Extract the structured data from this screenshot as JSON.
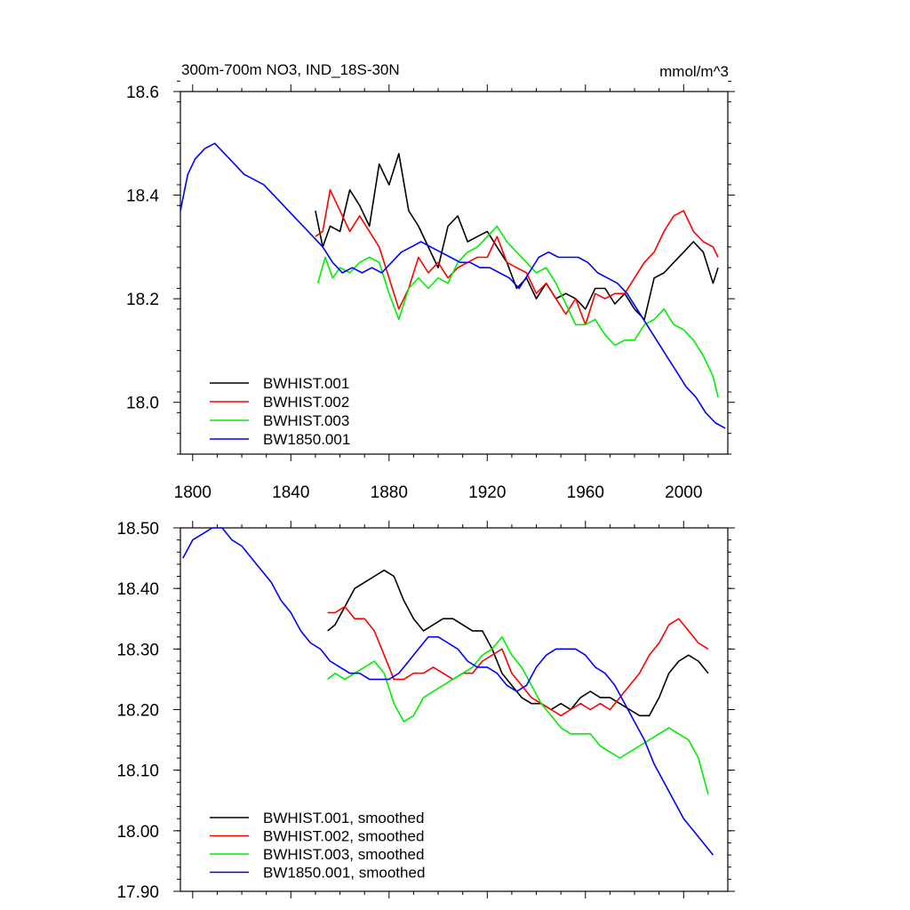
{
  "figure": {
    "title_left": "300m-700m NO3, IND_18S-30N",
    "title_right": "mmol/m^3"
  },
  "chart_data": [
    {
      "type": "line",
      "title": "300m-700m NO3, IND_18S-30N",
      "units": "mmol/m^3",
      "xlabel": "",
      "ylabel": "",
      "xlim": [
        1795,
        2018
      ],
      "ylim": [
        17.9,
        18.6
      ],
      "xticks": [
        1800,
        1840,
        1880,
        1920,
        1960,
        2000
      ],
      "yticks": [
        18.0,
        18.2,
        18.4,
        18.6
      ],
      "ytick_labels": [
        "18.0",
        "18.2",
        "18.4",
        "18.6"
      ],
      "grid": false,
      "legend_position": "bottom-left",
      "series": [
        {
          "name": "BWHIST.001",
          "color": "#000000",
          "x": [
            1850,
            1853,
            1856,
            1860,
            1864,
            1868,
            1872,
            1876,
            1880,
            1884,
            1888,
            1892,
            1896,
            1900,
            1904,
            1908,
            1912,
            1916,
            1920,
            1924,
            1928,
            1932,
            1936,
            1940,
            1944,
            1948,
            1952,
            1956,
            1960,
            1964,
            1968,
            1972,
            1976,
            1980,
            1984,
            1988,
            1992,
            1996,
            2000,
            2004,
            2008,
            2012,
            2014
          ],
          "y": [
            18.37,
            18.3,
            18.34,
            18.33,
            18.41,
            18.38,
            18.34,
            18.46,
            18.42,
            18.48,
            18.37,
            18.34,
            18.3,
            18.26,
            18.34,
            18.36,
            18.31,
            18.32,
            18.33,
            18.3,
            18.27,
            18.22,
            18.24,
            18.2,
            18.23,
            18.2,
            18.21,
            18.2,
            18.18,
            18.22,
            18.22,
            18.19,
            18.21,
            18.18,
            18.16,
            18.24,
            18.25,
            18.27,
            18.29,
            18.31,
            18.29,
            18.23,
            18.26
          ]
        },
        {
          "name": "BWHIST.002",
          "color": "#ff0000",
          "x": [
            1850,
            1853,
            1856,
            1860,
            1864,
            1868,
            1872,
            1876,
            1880,
            1884,
            1888,
            1892,
            1896,
            1900,
            1904,
            1908,
            1912,
            1916,
            1920,
            1924,
            1928,
            1932,
            1936,
            1940,
            1944,
            1948,
            1952,
            1956,
            1960,
            1964,
            1968,
            1972,
            1976,
            1980,
            1984,
            1988,
            1992,
            1996,
            2000,
            2004,
            2008,
            2012,
            2014
          ],
          "y": [
            18.32,
            18.33,
            18.41,
            18.37,
            18.33,
            18.36,
            18.33,
            18.3,
            18.24,
            18.18,
            18.22,
            18.28,
            18.25,
            18.27,
            18.24,
            18.26,
            18.27,
            18.28,
            18.28,
            18.32,
            18.27,
            18.26,
            18.25,
            18.21,
            18.23,
            18.2,
            18.17,
            18.2,
            18.15,
            18.21,
            18.2,
            18.21,
            18.21,
            18.24,
            18.27,
            18.29,
            18.33,
            18.36,
            18.37,
            18.33,
            18.31,
            18.3,
            18.28
          ]
        },
        {
          "name": "BWHIST.003",
          "color": "#00ee00",
          "x": [
            1851,
            1854,
            1857,
            1860,
            1864,
            1868,
            1872,
            1876,
            1880,
            1884,
            1888,
            1892,
            1896,
            1900,
            1904,
            1908,
            1912,
            1916,
            1920,
            1924,
            1928,
            1932,
            1936,
            1940,
            1944,
            1948,
            1952,
            1956,
            1960,
            1964,
            1968,
            1972,
            1976,
            1980,
            1984,
            1988,
            1992,
            1996,
            2000,
            2004,
            2008,
            2012,
            2014
          ],
          "y": [
            18.23,
            18.28,
            18.24,
            18.26,
            18.25,
            18.27,
            18.28,
            18.27,
            18.21,
            18.16,
            18.22,
            18.24,
            18.22,
            18.24,
            18.23,
            18.27,
            18.29,
            18.3,
            18.32,
            18.34,
            18.31,
            18.29,
            18.27,
            18.25,
            18.26,
            18.23,
            18.19,
            18.15,
            18.15,
            18.16,
            18.13,
            18.11,
            18.12,
            18.12,
            18.15,
            18.16,
            18.18,
            18.15,
            18.14,
            18.12,
            18.09,
            18.05,
            18.01
          ]
        },
        {
          "name": "BW1850.001",
          "color": "#0000ff",
          "x": [
            1795,
            1798,
            1801,
            1805,
            1809,
            1813,
            1817,
            1821,
            1825,
            1829,
            1833,
            1837,
            1841,
            1845,
            1849,
            1853,
            1857,
            1861,
            1865,
            1869,
            1873,
            1877,
            1881,
            1885,
            1889,
            1893,
            1897,
            1901,
            1905,
            1909,
            1913,
            1917,
            1921,
            1925,
            1929,
            1933,
            1937,
            1941,
            1945,
            1949,
            1953,
            1957,
            1961,
            1965,
            1969,
            1973,
            1977,
            1981,
            1985,
            1989,
            1993,
            1997,
            2001,
            2005,
            2009,
            2013,
            2017
          ],
          "y": [
            18.37,
            18.44,
            18.47,
            18.49,
            18.5,
            18.48,
            18.46,
            18.44,
            18.43,
            18.42,
            18.4,
            18.38,
            18.36,
            18.34,
            18.32,
            18.3,
            18.27,
            18.25,
            18.26,
            18.25,
            18.26,
            18.25,
            18.27,
            18.29,
            18.3,
            18.31,
            18.3,
            18.29,
            18.28,
            18.27,
            18.27,
            18.26,
            18.26,
            18.25,
            18.24,
            18.22,
            18.25,
            18.28,
            18.29,
            18.28,
            18.28,
            18.28,
            18.27,
            18.25,
            18.24,
            18.23,
            18.21,
            18.18,
            18.15,
            18.12,
            18.09,
            18.06,
            18.03,
            18.01,
            17.98,
            17.96,
            17.95
          ]
        }
      ]
    },
    {
      "type": "line",
      "xlim": [
        1795,
        2018
      ],
      "ylim": [
        17.9,
        18.5
      ],
      "xticks": [
        1800,
        1840,
        1880,
        1920,
        1960,
        2000
      ],
      "yticks": [
        17.9,
        18.0,
        18.1,
        18.2,
        18.3,
        18.4,
        18.5
      ],
      "ytick_labels": [
        "17.90",
        "18.00",
        "18.10",
        "18.20",
        "18.30",
        "18.40",
        "18.50"
      ],
      "grid": false,
      "legend_position": "bottom-left",
      "series": [
        {
          "name": "BWHIST.001, smoothed",
          "color": "#000000",
          "x": [
            1855,
            1858,
            1862,
            1866,
            1870,
            1874,
            1878,
            1882,
            1886,
            1890,
            1894,
            1898,
            1902,
            1906,
            1910,
            1914,
            1918,
            1922,
            1926,
            1930,
            1934,
            1938,
            1942,
            1946,
            1950,
            1954,
            1958,
            1962,
            1966,
            1970,
            1974,
            1978,
            1982,
            1986,
            1990,
            1994,
            1998,
            2002,
            2006,
            2010
          ],
          "y": [
            18.33,
            18.34,
            18.37,
            18.4,
            18.41,
            18.42,
            18.43,
            18.42,
            18.38,
            18.35,
            18.33,
            18.34,
            18.35,
            18.35,
            18.34,
            18.33,
            18.33,
            18.3,
            18.26,
            18.24,
            18.22,
            18.21,
            18.21,
            18.2,
            18.21,
            18.2,
            18.22,
            18.23,
            18.22,
            18.22,
            18.21,
            18.2,
            18.19,
            18.19,
            18.22,
            18.26,
            18.28,
            18.29,
            18.28,
            18.26
          ]
        },
        {
          "name": "BWHIST.002, smoothed",
          "color": "#ff0000",
          "x": [
            1855,
            1858,
            1862,
            1866,
            1870,
            1874,
            1878,
            1882,
            1886,
            1890,
            1894,
            1898,
            1902,
            1906,
            1910,
            1914,
            1918,
            1922,
            1926,
            1930,
            1934,
            1938,
            1942,
            1946,
            1950,
            1954,
            1958,
            1962,
            1966,
            1970,
            1974,
            1978,
            1982,
            1986,
            1990,
            1994,
            1998,
            2002,
            2006,
            2010
          ],
          "y": [
            18.36,
            18.36,
            18.37,
            18.35,
            18.35,
            18.33,
            18.29,
            18.25,
            18.25,
            18.26,
            18.26,
            18.27,
            18.26,
            18.25,
            18.26,
            18.26,
            18.28,
            18.29,
            18.3,
            18.26,
            18.24,
            18.22,
            18.21,
            18.2,
            18.19,
            18.2,
            18.21,
            18.2,
            18.21,
            18.2,
            18.22,
            18.24,
            18.26,
            18.29,
            18.31,
            18.34,
            18.35,
            18.33,
            18.31,
            18.3
          ]
        },
        {
          "name": "BWHIST.003, smoothed",
          "color": "#00ee00",
          "x": [
            1855,
            1858,
            1862,
            1866,
            1870,
            1874,
            1878,
            1882,
            1886,
            1890,
            1894,
            1898,
            1902,
            1906,
            1910,
            1914,
            1918,
            1922,
            1926,
            1930,
            1934,
            1938,
            1942,
            1946,
            1950,
            1954,
            1958,
            1962,
            1966,
            1970,
            1974,
            1978,
            1982,
            1986,
            1990,
            1994,
            1998,
            2002,
            2006,
            2010
          ],
          "y": [
            18.25,
            18.26,
            18.25,
            18.26,
            18.27,
            18.28,
            18.26,
            18.21,
            18.18,
            18.19,
            18.22,
            18.23,
            18.24,
            18.25,
            18.26,
            18.27,
            18.29,
            18.3,
            18.32,
            18.29,
            18.27,
            18.24,
            18.21,
            18.19,
            18.17,
            18.16,
            18.16,
            18.16,
            18.14,
            18.13,
            18.12,
            18.13,
            18.14,
            18.15,
            18.16,
            18.17,
            18.16,
            18.15,
            18.12,
            18.06
          ]
        },
        {
          "name": "BW1850.001, smoothed",
          "color": "#0000ff",
          "x": [
            1796,
            1800,
            1804,
            1808,
            1812,
            1816,
            1820,
            1824,
            1828,
            1832,
            1836,
            1840,
            1844,
            1848,
            1852,
            1856,
            1860,
            1864,
            1868,
            1872,
            1876,
            1880,
            1884,
            1888,
            1892,
            1896,
            1900,
            1904,
            1908,
            1912,
            1916,
            1920,
            1924,
            1928,
            1932,
            1936,
            1940,
            1944,
            1948,
            1952,
            1956,
            1960,
            1964,
            1968,
            1972,
            1976,
            1980,
            1984,
            1988,
            1992,
            1996,
            2000,
            2004,
            2008,
            2012
          ],
          "y": [
            18.45,
            18.48,
            18.49,
            18.5,
            18.5,
            18.48,
            18.47,
            18.45,
            18.43,
            18.41,
            18.38,
            18.36,
            18.33,
            18.31,
            18.3,
            18.28,
            18.27,
            18.26,
            18.26,
            18.25,
            18.25,
            18.25,
            18.26,
            18.28,
            18.3,
            18.32,
            18.32,
            18.31,
            18.3,
            18.28,
            18.27,
            18.27,
            18.26,
            18.24,
            18.23,
            18.24,
            18.27,
            18.29,
            18.3,
            18.3,
            18.3,
            18.29,
            18.27,
            18.26,
            18.24,
            18.21,
            18.18,
            18.15,
            18.11,
            18.08,
            18.05,
            18.02,
            18.0,
            17.98,
            17.96
          ]
        }
      ]
    }
  ]
}
